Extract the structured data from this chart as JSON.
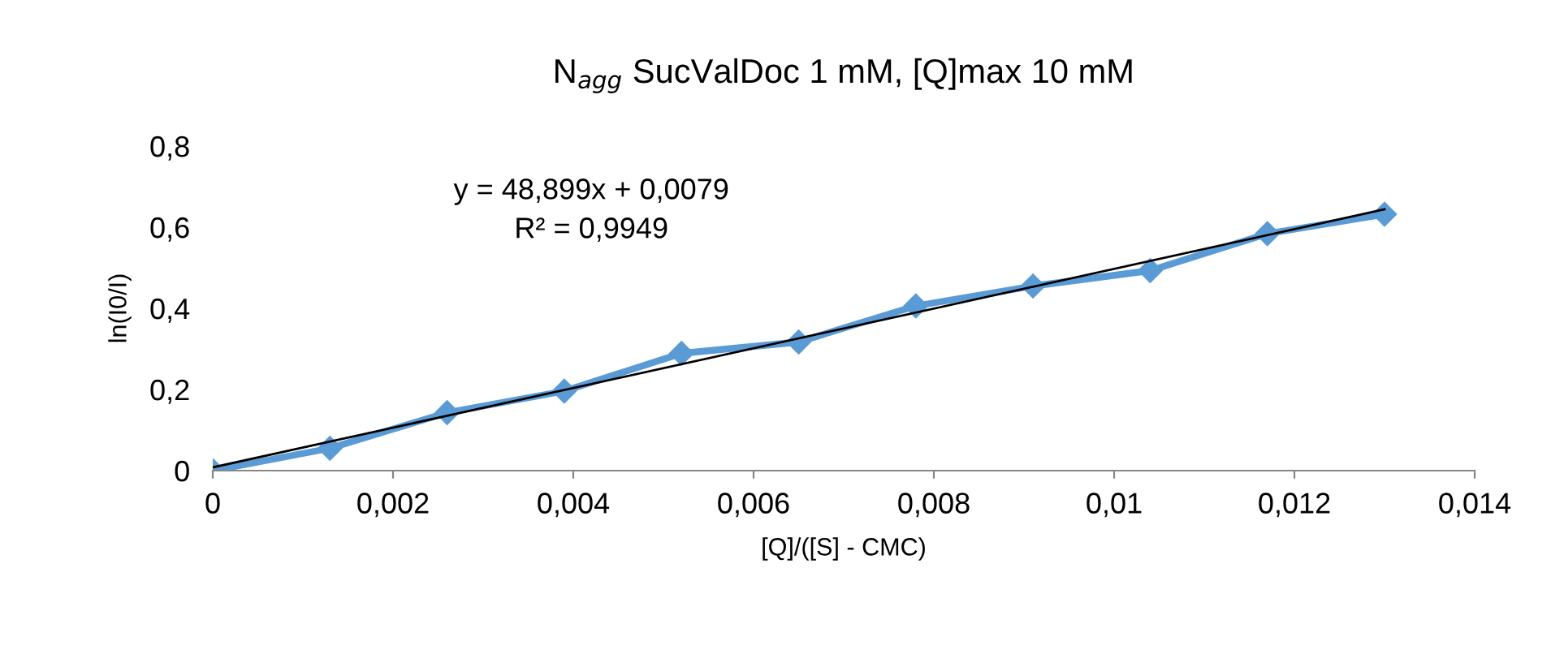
{
  "chart_data": {
    "type": "line",
    "title": "N$_{agg}$ SucValDoc 1 mM, [Q]max 10 mM",
    "xlabel": "[Q]/([S] - CMC)",
    "ylabel": "ln(I0/I)",
    "annotations": [
      "y = 48,899x + 0,0079",
      "R² = 0,9949"
    ],
    "series": [
      {
        "color": "#5b9bd5",
        "marker": "diamond",
        "x": [
          0,
          0.0013,
          0.0026,
          0.0039,
          0.0052,
          0.0065,
          0.0078,
          0.0091,
          0.0104,
          0.0117,
          0.013
        ],
        "values": [
          0,
          0.055,
          0.143,
          0.196,
          0.289,
          0.317,
          0.406,
          0.455,
          0.493,
          0.584,
          0.632
        ]
      },
      {
        "color": "#000000",
        "marker": "none",
        "x": [
          0,
          0.013
        ],
        "values": [
          0.008,
          0.644
        ]
      }
    ],
    "xlim": [
      0,
      0.014
    ],
    "xticks": [
      {
        "value": 0,
        "label": "0"
      },
      {
        "value": 0.002,
        "label": "0,002"
      },
      {
        "value": 0.004,
        "label": "0,004"
      },
      {
        "value": 0.006,
        "label": "0,006"
      },
      {
        "value": 0.008,
        "label": "0,008"
      },
      {
        "value": 0.01,
        "label": "0,01"
      },
      {
        "value": 0.012,
        "label": "0,012"
      },
      {
        "value": 0.014,
        "label": "0,014"
      }
    ],
    "ylim": [
      0,
      0.8
    ],
    "yticks": [
      {
        "value": 0,
        "label": "0"
      },
      {
        "value": 0.2,
        "label": "0,2"
      },
      {
        "value": 0.4,
        "label": "0,4"
      },
      {
        "value": 0.6,
        "label": "0,6"
      },
      {
        "value": 0.8,
        "label": "0,8"
      }
    ],
    "grid": false,
    "legend": false
  }
}
